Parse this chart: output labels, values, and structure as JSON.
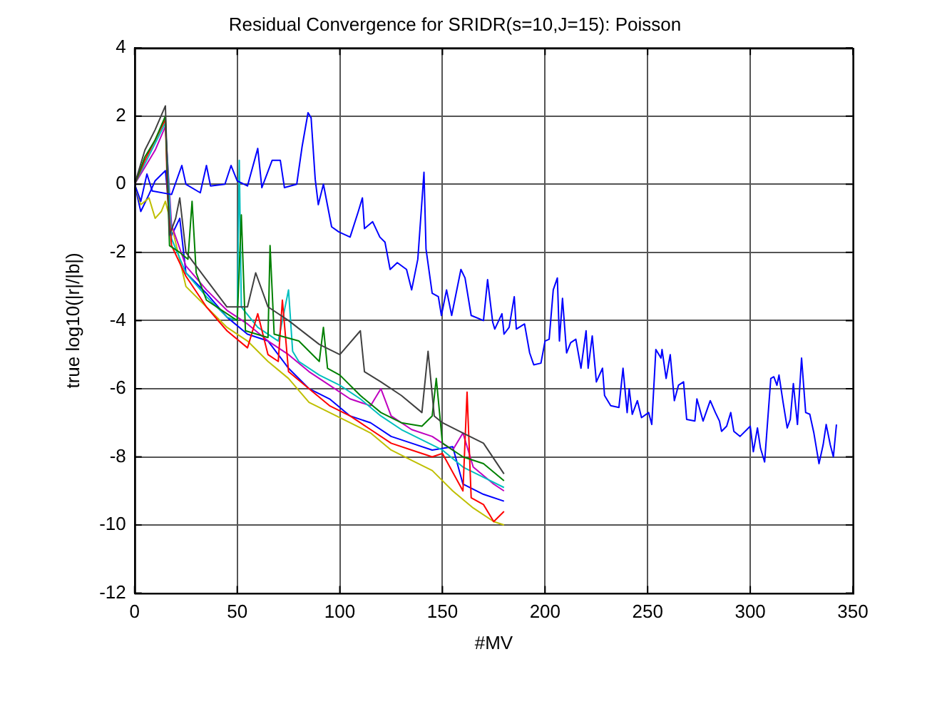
{
  "chart_data": {
    "type": "line",
    "title": "Residual Convergence for SRIDR(s=10,J=15): Poisson",
    "xlabel": "#MV",
    "ylabel": "true log10(|r|/|b|)",
    "xlim": [
      0,
      350
    ],
    "xticks": [
      0,
      50,
      100,
      150,
      200,
      250,
      300,
      350
    ],
    "ylim": [
      -12,
      4
    ],
    "yticks": [
      -12,
      -10,
      -8,
      -6,
      -4,
      -2,
      0,
      2,
      4
    ],
    "grid": true,
    "legend": false,
    "marker": "none",
    "line_style": "solid",
    "series": [
      {
        "color": "#0000ff",
        "x": [
          0,
          3,
          6,
          8.6,
          18,
          23,
          25,
          32,
          35,
          37,
          44,
          47,
          50,
          55,
          60,
          62,
          67,
          71,
          73,
          79,
          81.6,
          84.5,
          86,
          88,
          89.5,
          92,
          96,
          99.5,
          105,
          109,
          111,
          112,
          116,
          119.5,
          122,
          124.5,
          128,
          132.5,
          135,
          138,
          141,
          142,
          145,
          148,
          149.5,
          152,
          154.5,
          159,
          161,
          164,
          170,
          172,
          174.5,
          175.5,
          179,
          180,
          182.5,
          185,
          186,
          190,
          192.5,
          194.5,
          198,
          200,
          202,
          204,
          206,
          207,
          208.5,
          210.5,
          212.5,
          215,
          217.5,
          220,
          221,
          223,
          225,
          228,
          229,
          232,
          236,
          238,
          240,
          241,
          242.5,
          245,
          247,
          250.5,
          252,
          254,
          256.5,
          257,
          259,
          261,
          263,
          265,
          267.5,
          269,
          273,
          274,
          277,
          280.5,
          283,
          285,
          286,
          288.5,
          290.5,
          292,
          295,
          300,
          301.5,
          303.5,
          305,
          307,
          310,
          311.5,
          313,
          314,
          316,
          318,
          319.5,
          321,
          323,
          325,
          327,
          329,
          331,
          333.5,
          335.5,
          337,
          339,
          340.5,
          342
        ],
        "values": [
          0,
          -0.5,
          0.3,
          -0.2,
          -0.3,
          0.55,
          0,
          -0.25,
          0.55,
          -0.05,
          0,
          0.55,
          0.1,
          -0.05,
          1.05,
          -0.1,
          0.7,
          0.7,
          -0.1,
          0,
          1.1,
          2.1,
          1.95,
          0.15,
          -0.6,
          0,
          -1.25,
          -1.4,
          -1.55,
          -0.8,
          -0.4,
          -1.3,
          -1.1,
          -1.55,
          -1.7,
          -2.5,
          -2.3,
          -2.5,
          -3.1,
          -2.2,
          0.35,
          -1.9,
          -3.2,
          -3.3,
          -3.85,
          -3.1,
          -3.85,
          -2.5,
          -2.75,
          -3.85,
          -4,
          -2.8,
          -4.05,
          -4.25,
          -3.8,
          -4.4,
          -4.2,
          -3.3,
          -4.25,
          -4.1,
          -4.95,
          -5.3,
          -5.25,
          -4.6,
          -4.55,
          -3.1,
          -2.75,
          -4.6,
          -3.35,
          -4.95,
          -4.65,
          -4.55,
          -5.4,
          -4.3,
          -5.4,
          -4.45,
          -5.8,
          -5.4,
          -6.2,
          -6.5,
          -6.55,
          -5.4,
          -6.7,
          -6.0,
          -6.75,
          -6.35,
          -6.85,
          -6.7,
          -7.05,
          -4.85,
          -5.1,
          -4.85,
          -5.7,
          -5,
          -6.35,
          -5.9,
          -5.8,
          -6.9,
          -6.95,
          -6.3,
          -6.95,
          -6.35,
          -6.7,
          -6.95,
          -7.25,
          -7.1,
          -6.7,
          -7.25,
          -7.4,
          -7.1,
          -7.85,
          -7.15,
          -7.75,
          -8.15,
          -5.7,
          -5.65,
          -5.9,
          -5.6,
          -6.4,
          -7.15,
          -6.9,
          -5.85,
          -7.05,
          -5.1,
          -6.7,
          -6.75,
          -7.3,
          -8.2,
          -7.65,
          -7.05,
          -7.65,
          -8.0,
          -7.05
        ]
      },
      {
        "color": "#404040",
        "x": [
          0,
          5,
          10,
          15,
          17,
          20,
          22,
          25,
          35,
          45,
          55,
          59,
          65,
          75,
          90,
          100,
          110,
          112,
          120,
          130,
          140,
          143,
          146,
          150,
          160,
          170,
          180
        ],
        "values": [
          0,
          1,
          1.6,
          2.3,
          -1.5,
          -1.0,
          -0.4,
          -2.0,
          -2.8,
          -3.6,
          -3.6,
          -2.6,
          -3.6,
          -4.0,
          -4.7,
          -5.0,
          -4.3,
          -5.5,
          -5.8,
          -6.2,
          -6.7,
          -4.9,
          -6.8,
          -7.0,
          -7.3,
          -7.6,
          -8.5
        ]
      },
      {
        "color": "#008000",
        "x": [
          0,
          5,
          10,
          15,
          17,
          22,
          26,
          28,
          30,
          35,
          50,
          52,
          54,
          65,
          66,
          68,
          80,
          90,
          92,
          94,
          100,
          110,
          120,
          130,
          140,
          145,
          147,
          150,
          160,
          170,
          180
        ],
        "values": [
          0,
          0.8,
          1.3,
          2.0,
          -1.8,
          -2.0,
          -2.2,
          -0.5,
          -2.6,
          -3.4,
          -4.0,
          -0.9,
          -4.3,
          -4.5,
          -1.8,
          -4.4,
          -4.6,
          -5.2,
          -4.2,
          -5.4,
          -5.6,
          -6.2,
          -6.7,
          -7.0,
          -7.1,
          -6.8,
          -5.7,
          -7.6,
          -8.0,
          -8.2,
          -8.7
        ]
      },
      {
        "color": "#ff0000",
        "x": [
          0,
          5,
          10,
          15,
          16,
          18,
          25,
          35,
          45,
          55,
          60,
          65,
          70,
          72,
          75,
          85,
          95,
          105,
          115,
          125,
          135,
          145,
          150,
          160,
          162,
          164,
          170,
          175,
          180
        ],
        "values": [
          0,
          0.7,
          1.3,
          1.9,
          -0.3,
          -1.8,
          -2.7,
          -3.6,
          -4.3,
          -4.8,
          -3.8,
          -5.0,
          -5.2,
          -3.4,
          -5.5,
          -6.0,
          -6.5,
          -6.8,
          -7.2,
          -7.6,
          -7.8,
          -8.0,
          -7.9,
          -9.0,
          -6.1,
          -9.2,
          -9.4,
          -9.9,
          -9.6
        ]
      },
      {
        "color": "#00bfbf",
        "x": [
          0,
          5,
          10,
          15,
          18,
          25,
          35,
          45,
          50,
          51,
          52,
          60,
          70,
          75,
          77,
          80,
          90,
          100,
          110,
          120,
          130,
          140,
          150,
          160,
          170,
          180
        ],
        "values": [
          0,
          0.6,
          1.2,
          1.8,
          -1.6,
          -2.6,
          -3.3,
          -3.9,
          -4.0,
          0.7,
          -3.6,
          -4.2,
          -4.6,
          -3.1,
          -4.9,
          -5.2,
          -5.6,
          -5.9,
          -6.3,
          -6.8,
          -7.2,
          -7.5,
          -7.8,
          -8.3,
          -8.6,
          -8.9
        ]
      },
      {
        "color": "#bf00bf",
        "x": [
          0,
          5,
          10,
          15,
          18,
          25,
          35,
          45,
          55,
          65,
          75,
          85,
          95,
          105,
          115,
          120,
          125,
          135,
          145,
          155,
          160,
          165,
          175,
          180
        ],
        "values": [
          0,
          0.5,
          1.0,
          1.7,
          -1.2,
          -2.4,
          -3.1,
          -3.7,
          -4.1,
          -4.6,
          -5.0,
          -5.5,
          -5.9,
          -6.3,
          -6.5,
          -6.0,
          -6.8,
          -7.2,
          -7.4,
          -7.8,
          -7.3,
          -8.3,
          -8.8,
          -9.0
        ]
      },
      {
        "color": "#bfbf00",
        "x": [
          0,
          3,
          7,
          10,
          13,
          15,
          18,
          25,
          35,
          45,
          55,
          65,
          75,
          85,
          95,
          105,
          115,
          125,
          135,
          145,
          155,
          165,
          175,
          180
        ],
        "values": [
          0,
          -0.6,
          -0.4,
          -1.0,
          -0.8,
          -0.5,
          -1.2,
          -3.0,
          -3.6,
          -4.2,
          -4.6,
          -5.2,
          -5.7,
          -6.4,
          -6.7,
          -7.0,
          -7.3,
          -7.8,
          -8.1,
          -8.4,
          -9.0,
          -9.5,
          -9.9,
          -10.0
        ]
      },
      {
        "color": "#0000ff",
        "x": [
          0,
          3,
          7,
          10,
          15,
          18,
          22,
          25,
          35,
          45,
          55,
          65,
          75,
          85,
          95,
          105,
          115,
          125,
          135,
          145,
          155,
          160,
          170,
          180
        ],
        "values": [
          0,
          -0.8,
          -0.3,
          0.1,
          0.4,
          -1.5,
          -1.0,
          -2.6,
          -3.2,
          -3.9,
          -4.4,
          -4.6,
          -5.4,
          -6.0,
          -6.3,
          -6.8,
          -7.0,
          -7.4,
          -7.6,
          -7.8,
          -7.7,
          -8.8,
          -9.1,
          -9.3
        ]
      }
    ]
  }
}
